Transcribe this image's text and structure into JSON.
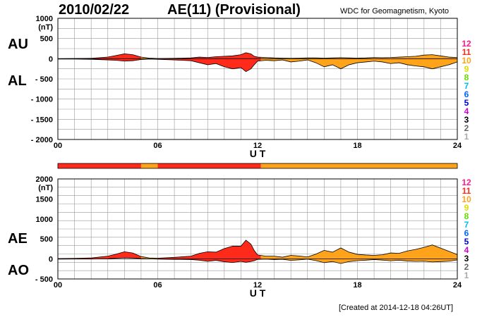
{
  "header": {
    "date": "2010/02/22",
    "title": "AE(11) (Provisional)",
    "source": "WDC for Geomagnetism, Kyoto",
    "created": "[Created at 2014-12-18 04:26UT]"
  },
  "side_labels": {
    "au": "AU",
    "al": "AL",
    "ae": "AE",
    "ao": "AO"
  },
  "colors": {
    "red": "#ff2a1a",
    "orange": "#ffa41a",
    "grid": "#999999",
    "scale": [
      "#aaaaaa",
      "#666666",
      "#000000",
      "#cc00cc",
      "#0000cc",
      "#0066ff",
      "#00bbee",
      "#66dd00",
      "#dddd00",
      "#ffa41a",
      "#ff2a1a",
      "#ff1a8c"
    ]
  },
  "station_scale": [
    "12",
    "11",
    "10",
    "9",
    "8",
    "7",
    "6",
    "5",
    "4",
    "3",
    "2",
    "1"
  ],
  "chart_data": [
    {
      "type": "area",
      "title": "AE(11) (Provisional)",
      "panel": "AU / AL",
      "xlabel": "U T",
      "ylabel": "(nT)",
      "xlim": [
        0,
        24
      ],
      "ylim": [
        -2000,
        1000
      ],
      "x_ticks": [
        "00",
        "06",
        "12",
        "18",
        "24"
      ],
      "y_ticks": [
        {
          "v": 1000,
          "label": "1000"
        },
        {
          "v": 500,
          "label": "500"
        },
        {
          "v": 0,
          "label": "0"
        },
        {
          "v": -500,
          "label": "- 500"
        },
        {
          "v": -1000,
          "label": "- 1000"
        },
        {
          "v": -1500,
          "label": "- 1500"
        },
        {
          "v": -2000,
          "label": "- 2000"
        }
      ],
      "x": [
        0,
        1,
        2,
        3,
        3.5,
        4,
        4.5,
        5,
        5.5,
        6,
        7,
        8,
        8.5,
        9,
        9.5,
        10,
        10.5,
        11,
        11.3,
        11.6,
        11.8,
        12,
        12.5,
        13,
        13.5,
        14,
        14.5,
        15,
        15.5,
        16,
        16.5,
        17,
        17.5,
        18,
        18.5,
        19,
        19.5,
        20,
        20.5,
        21,
        21.5,
        22,
        22.5,
        23,
        23.5,
        24
      ],
      "series": [
        {
          "name": "AU",
          "values": [
            0,
            5,
            10,
            40,
            80,
            120,
            100,
            40,
            15,
            5,
            10,
            20,
            40,
            30,
            50,
            60,
            70,
            100,
            150,
            120,
            60,
            40,
            30,
            20,
            15,
            10,
            15,
            20,
            20,
            15,
            20,
            25,
            20,
            15,
            20,
            30,
            25,
            30,
            40,
            50,
            60,
            90,
            100,
            70,
            40,
            30
          ]
        },
        {
          "name": "AL",
          "values": [
            -10,
            -10,
            -15,
            -30,
            -40,
            -60,
            -50,
            -20,
            -10,
            -15,
            -30,
            -50,
            -100,
            -150,
            -120,
            -200,
            -250,
            -220,
            -320,
            -250,
            -150,
            -60,
            -40,
            -50,
            -30,
            -80,
            -60,
            -30,
            -100,
            -200,
            -150,
            -250,
            -150,
            -100,
            -80,
            -60,
            -80,
            -120,
            -100,
            -150,
            -180,
            -200,
            -250,
            -200,
            -150,
            -80
          ]
        }
      ],
      "fill_segments": [
        {
          "from": 0,
          "to": 5,
          "color": "red"
        },
        {
          "from": 5,
          "to": 6,
          "color": "orange"
        },
        {
          "from": 6,
          "to": 12.2,
          "color": "red"
        },
        {
          "from": 12.2,
          "to": 24,
          "color": "orange"
        }
      ]
    },
    {
      "type": "area",
      "panel": "AE / AO",
      "xlabel": "U T",
      "ylabel": "(nT)",
      "xlim": [
        0,
        24
      ],
      "ylim": [
        -500,
        2000
      ],
      "x_ticks": [
        "00",
        "06",
        "12",
        "18",
        "24"
      ],
      "y_ticks": [
        {
          "v": 2000,
          "label": "2000"
        },
        {
          "v": 1500,
          "label": "1500"
        },
        {
          "v": 1000,
          "label": "1000"
        },
        {
          "v": 500,
          "label": "500"
        },
        {
          "v": 0,
          "label": "0"
        },
        {
          "v": -500,
          "label": "- 500"
        }
      ],
      "x": [
        0,
        1,
        2,
        3,
        3.5,
        4,
        4.5,
        5,
        5.5,
        6,
        7,
        8,
        8.5,
        9,
        9.5,
        10,
        10.5,
        11,
        11.3,
        11.6,
        11.8,
        12,
        12.5,
        13,
        13.5,
        14,
        14.5,
        15,
        15.5,
        16,
        16.5,
        17,
        17.5,
        18,
        18.5,
        19,
        19.5,
        20,
        20.5,
        21,
        21.5,
        22,
        22.5,
        23,
        23.5,
        24
      ],
      "series": [
        {
          "name": "AE",
          "values": [
            10,
            15,
            25,
            70,
            120,
            180,
            150,
            60,
            25,
            20,
            40,
            70,
            140,
            180,
            170,
            260,
            320,
            320,
            470,
            370,
            210,
            100,
            70,
            70,
            45,
            90,
            75,
            50,
            120,
            215,
            170,
            275,
            170,
            115,
            100,
            90,
            105,
            150,
            140,
            200,
            240,
            290,
            350,
            270,
            190,
            110
          ]
        },
        {
          "name": "AO",
          "values": [
            -5,
            -2,
            -2,
            5,
            20,
            30,
            25,
            10,
            2,
            -5,
            -10,
            -15,
            -30,
            -60,
            -35,
            -70,
            -90,
            -60,
            -85,
            -65,
            -45,
            -10,
            -5,
            -15,
            -8,
            -35,
            -22,
            -5,
            -40,
            -92,
            -65,
            -112,
            -65,
            -42,
            -30,
            -15,
            -28,
            -45,
            -30,
            -50,
            -60,
            -55,
            -75,
            -65,
            -55,
            -25
          ]
        }
      ],
      "fill_segments": [
        {
          "from": 0,
          "to": 5,
          "color": "red"
        },
        {
          "from": 5,
          "to": 6,
          "color": "orange"
        },
        {
          "from": 6,
          "to": 12.2,
          "color": "red"
        },
        {
          "from": 12.2,
          "to": 24,
          "color": "orange"
        }
      ]
    }
  ],
  "activity_bar": [
    {
      "from": 0,
      "to": 5,
      "color": "red"
    },
    {
      "from": 5,
      "to": 6,
      "color": "orange"
    },
    {
      "from": 6,
      "to": 12.2,
      "color": "red"
    },
    {
      "from": 12.2,
      "to": 24,
      "color": "orange"
    }
  ]
}
